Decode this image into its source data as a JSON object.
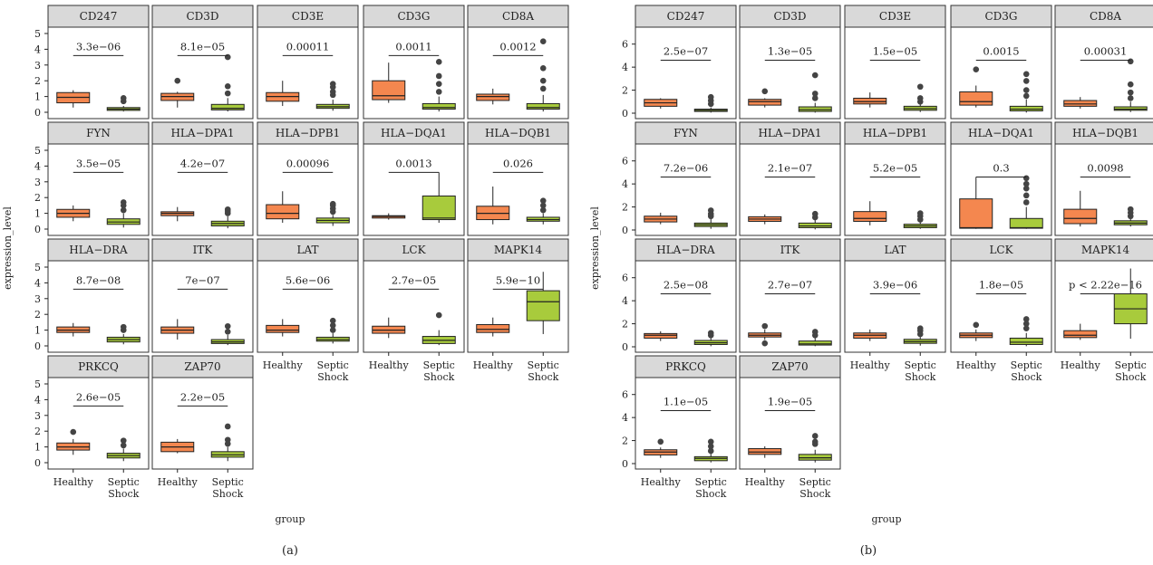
{
  "colors": {
    "healthy": "#F4874F",
    "septic": "#A8CB3C",
    "strip": "#d9d9d9"
  },
  "chart_data": [
    {
      "type": "boxplot",
      "caption": "(a)",
      "xlabel": "group",
      "ylabel": "expression_level",
      "groups": [
        "Healthy",
        "Septic Shock"
      ],
      "group_label_lines": [
        [
          "Healthy"
        ],
        [
          "Septic",
          "Shock"
        ]
      ],
      "ylim": [
        0,
        5
      ],
      "yticks": [
        0,
        1,
        2,
        3,
        4,
        5
      ],
      "panels": [
        {
          "gene": "CD247",
          "p": "3.3e−06",
          "boxes": [
            [
              0.3,
              0.6,
              0.95,
              1.25,
              1.4
            ],
            [
              0.05,
              0.12,
              0.2,
              0.3,
              0.4
            ]
          ],
          "outliers": [
            [],
            [
              0.7,
              0.9
            ]
          ],
          "bracket_y": 3.6
        },
        {
          "gene": "CD3D",
          "p": "8.1e−05",
          "boxes": [
            [
              0.3,
              0.75,
              1.0,
              1.2,
              1.3
            ],
            [
              0.05,
              0.15,
              0.25,
              0.5,
              0.9
            ]
          ],
          "outliers": [
            [
              2.0
            ],
            [
              1.2,
              1.65,
              3.5
            ]
          ],
          "bracket_y": 3.6
        },
        {
          "gene": "CD3E",
          "p": "0.00011",
          "boxes": [
            [
              0.4,
              0.7,
              1.0,
              1.25,
              2.0
            ],
            [
              0.1,
              0.25,
              0.35,
              0.5,
              0.8
            ]
          ],
          "outliers": [
            [],
            [
              1.1,
              1.3,
              1.6,
              1.8
            ]
          ],
          "bracket_y": 3.6
        },
        {
          "gene": "CD3G",
          "p": "0.0011",
          "boxes": [
            [
              0.6,
              0.8,
              1.05,
              2.0,
              3.15
            ],
            [
              0.05,
              0.2,
              0.3,
              0.55,
              1.0
            ]
          ],
          "outliers": [
            [],
            [
              1.3,
              1.8,
              2.3,
              3.2
            ]
          ],
          "bracket_y": 3.6
        },
        {
          "gene": "CD8A",
          "p": "0.0012",
          "boxes": [
            [
              0.5,
              0.75,
              1.0,
              1.15,
              1.5
            ],
            [
              0.05,
              0.2,
              0.3,
              0.55,
              1.1
            ]
          ],
          "outliers": [
            [],
            [
              1.5,
              2.0,
              2.8,
              4.5
            ]
          ],
          "bracket_y": 3.6
        },
        {
          "gene": "FYN",
          "p": "3.5e−05",
          "boxes": [
            [
              0.5,
              0.75,
              1.0,
              1.25,
              1.5
            ],
            [
              0.1,
              0.3,
              0.45,
              0.65,
              1.0
            ]
          ],
          "outliers": [
            [],
            [
              1.2,
              1.5,
              1.7
            ]
          ],
          "bracket_y": 3.6
        },
        {
          "gene": "HLA−DPA1",
          "p": "4.2e−07",
          "boxes": [
            [
              0.5,
              0.85,
              1.0,
              1.1,
              1.4
            ],
            [
              0.05,
              0.2,
              0.35,
              0.5,
              0.8
            ]
          ],
          "outliers": [
            [],
            [
              1.0,
              1.15,
              1.25
            ]
          ],
          "bracket_y": 3.6
        },
        {
          "gene": "HLA−DPB1",
          "p": "0.00096",
          "boxes": [
            [
              0.4,
              0.65,
              1.0,
              1.55,
              2.4
            ],
            [
              0.2,
              0.4,
              0.55,
              0.7,
              0.9
            ]
          ],
          "outliers": [
            [],
            [
              1.1,
              1.3,
              1.5,
              1.6
            ]
          ],
          "bracket_y": 3.6
        },
        {
          "gene": "HLA−DQA1",
          "p": "0.0013",
          "boxes": [
            [
              0.6,
              0.7,
              0.8,
              0.85,
              1.0
            ],
            [
              0.4,
              0.6,
              0.7,
              2.1,
              3.6
            ]
          ],
          "outliers": [
            [],
            []
          ],
          "bracket_y": 3.6
        },
        {
          "gene": "HLA−DQB1",
          "p": "0.026",
          "boxes": [
            [
              0.3,
              0.6,
              1.0,
              1.45,
              2.7
            ],
            [
              0.3,
              0.5,
              0.6,
              0.75,
              1.0
            ]
          ],
          "outliers": [
            [],
            [
              1.2,
              1.5,
              1.8
            ]
          ],
          "bracket_y": 3.6
        },
        {
          "gene": "HLA−DRA",
          "p": "8.7e−08",
          "boxes": [
            [
              0.6,
              0.85,
              1.0,
              1.2,
              1.45
            ],
            [
              0.1,
              0.25,
              0.4,
              0.55,
              0.75
            ]
          ],
          "outliers": [
            [],
            [
              1.0,
              1.2
            ]
          ],
          "bracket_y": 3.6
        },
        {
          "gene": "ITK",
          "p": "7e−07",
          "boxes": [
            [
              0.4,
              0.8,
              1.0,
              1.2,
              1.7
            ],
            [
              0.05,
              0.15,
              0.25,
              0.4,
              0.7
            ]
          ],
          "outliers": [
            [],
            [
              0.9,
              1.25
            ]
          ],
          "bracket_y": 3.6
        },
        {
          "gene": "LAT",
          "p": "5.6e−06",
          "boxes": [
            [
              0.6,
              0.85,
              1.0,
              1.3,
              1.7
            ],
            [
              0.15,
              0.3,
              0.4,
              0.55,
              0.8
            ]
          ],
          "outliers": [
            [],
            [
              1.0,
              1.3,
              1.6
            ]
          ],
          "bracket_y": 3.6
        },
        {
          "gene": "LCK",
          "p": "2.7e−05",
          "boxes": [
            [
              0.5,
              0.8,
              1.0,
              1.25,
              1.8
            ],
            [
              0.05,
              0.15,
              0.35,
              0.6,
              1.0
            ]
          ],
          "outliers": [
            [],
            [
              1.95
            ]
          ],
          "bracket_y": 3.6
        },
        {
          "gene": "MAPK14",
          "p": "5.9e−10",
          "boxes": [
            [
              0.6,
              0.85,
              1.05,
              1.35,
              1.8
            ],
            [
              0.75,
              1.6,
              2.8,
              3.5,
              4.7
            ]
          ],
          "outliers": [
            [],
            []
          ],
          "bracket_y": 3.6
        },
        {
          "gene": "PRKCQ",
          "p": "2.6e−05",
          "boxes": [
            [
              0.5,
              0.8,
              1.0,
              1.25,
              1.5
            ],
            [
              0.1,
              0.3,
              0.45,
              0.6,
              0.9
            ]
          ],
          "outliers": [
            [
              1.95
            ],
            [
              1.1,
              1.4
            ]
          ],
          "bracket_y": 3.6
        },
        {
          "gene": "ZAP70",
          "p": "2.2e−05",
          "boxes": [
            [
              0.6,
              0.7,
              1.0,
              1.3,
              1.5
            ],
            [
              0.1,
              0.35,
              0.5,
              0.7,
              1.0
            ]
          ],
          "outliers": [
            [],
            [
              1.2,
              1.45,
              2.3
            ]
          ],
          "bracket_y": 3.6
        }
      ]
    },
    {
      "type": "boxplot",
      "caption": "(b)",
      "xlabel": "group",
      "ylabel": "expression_level",
      "groups": [
        "Healthy",
        "Septic Shock"
      ],
      "group_label_lines": [
        [
          "Healthy"
        ],
        [
          "Septic",
          "Shock"
        ]
      ],
      "ylim": [
        0,
        7
      ],
      "yticks": [
        0,
        2,
        4,
        6
      ],
      "panels": [
        {
          "gene": "CD247",
          "p": "2.5e−07",
          "boxes": [
            [
              0.4,
              0.6,
              0.9,
              1.2,
              1.3
            ],
            [
              0.05,
              0.15,
              0.25,
              0.35,
              0.5
            ]
          ],
          "outliers": [
            [],
            [
              0.8,
              1.1,
              1.4
            ]
          ],
          "bracket_y": 4.6
        },
        {
          "gene": "CD3D",
          "p": "1.3e−05",
          "boxes": [
            [
              0.5,
              0.7,
              1.0,
              1.2,
              1.3
            ],
            [
              0.05,
              0.15,
              0.3,
              0.55,
              0.9
            ]
          ],
          "outliers": [
            [
              1.9
            ],
            [
              1.3,
              1.7,
              3.3
            ]
          ],
          "bracket_y": 4.6
        },
        {
          "gene": "CD3E",
          "p": "1.5e−05",
          "boxes": [
            [
              0.5,
              0.8,
              1.0,
              1.3,
              1.8
            ],
            [
              0.1,
              0.25,
              0.4,
              0.6,
              0.9
            ]
          ],
          "outliers": [
            [],
            [
              1.0,
              1.3,
              2.3
            ]
          ],
          "bracket_y": 4.6
        },
        {
          "gene": "CD3G",
          "p": "0.0015",
          "boxes": [
            [
              0.5,
              0.7,
              1.0,
              1.85,
              2.4
            ],
            [
              0.05,
              0.2,
              0.35,
              0.6,
              1.2
            ]
          ],
          "outliers": [
            [
              3.8
            ],
            [
              1.5,
              2.0,
              2.8,
              3.4
            ]
          ],
          "bracket_y": 4.6
        },
        {
          "gene": "CD8A",
          "p": "0.00031",
          "boxes": [
            [
              0.4,
              0.6,
              0.8,
              1.1,
              1.4
            ],
            [
              0.1,
              0.25,
              0.35,
              0.55,
              1.0
            ]
          ],
          "outliers": [
            [],
            [
              1.3,
              1.8,
              2.5,
              4.5
            ]
          ],
          "bracket_y": 4.6
        },
        {
          "gene": "FYN",
          "p": "7.2e−06",
          "boxes": [
            [
              0.5,
              0.7,
              0.95,
              1.2,
              1.5
            ],
            [
              0.1,
              0.3,
              0.45,
              0.6,
              1.0
            ]
          ],
          "outliers": [
            [],
            [
              1.2,
              1.4,
              1.7
            ]
          ],
          "bracket_y": 4.6
        },
        {
          "gene": "HLA−DPA1",
          "p": "2.1e−07",
          "boxes": [
            [
              0.5,
              0.75,
              0.95,
              1.15,
              1.35
            ],
            [
              0.05,
              0.2,
              0.35,
              0.6,
              0.9
            ]
          ],
          "outliers": [
            [],
            [
              1.1,
              1.4
            ]
          ],
          "bracket_y": 4.6
        },
        {
          "gene": "HLA−DPB1",
          "p": "5.2e−05",
          "boxes": [
            [
              0.4,
              0.75,
              1.0,
              1.6,
              2.5
            ],
            [
              0.1,
              0.2,
              0.35,
              0.5,
              0.7
            ]
          ],
          "outliers": [
            [],
            [
              0.9,
              1.2,
              1.45
            ]
          ],
          "bracket_y": 4.6
        },
        {
          "gene": "HLA−DQA1",
          "p": "0.3",
          "boxes": [
            [
              0.1,
              0.15,
              0.2,
              2.7,
              4.6
            ],
            [
              0.1,
              0.15,
              0.2,
              1.0,
              2.0
            ]
          ],
          "outliers": [
            [],
            [
              2.4,
              3.0,
              3.6,
              4.0,
              4.5
            ]
          ],
          "bracket_y": 4.6
        },
        {
          "gene": "HLA−DQB1",
          "p": "0.0098",
          "boxes": [
            [
              0.3,
              0.55,
              1.0,
              1.8,
              3.4
            ],
            [
              0.3,
              0.45,
              0.6,
              0.8,
              1.0
            ]
          ],
          "outliers": [
            [],
            [
              1.2,
              1.5,
              1.8
            ]
          ],
          "bracket_y": 4.6
        },
        {
          "gene": "HLA−DRA",
          "p": "2.5e−08",
          "boxes": [
            [
              0.5,
              0.75,
              1.0,
              1.15,
              1.35
            ],
            [
              0.05,
              0.2,
              0.35,
              0.55,
              0.8
            ]
          ],
          "outliers": [
            [],
            [
              1.0,
              1.2
            ]
          ],
          "bracket_y": 4.6
        },
        {
          "gene": "ITK",
          "p": "2.7e−07",
          "boxes": [
            [
              0.6,
              0.85,
              1.0,
              1.2,
              1.5
            ],
            [
              0.05,
              0.15,
              0.25,
              0.5,
              0.8
            ]
          ],
          "outliers": [
            [
              0.3,
              1.8
            ],
            [
              1.0,
              1.3
            ]
          ],
          "bracket_y": 4.6
        },
        {
          "gene": "LAT",
          "p": "3.9e−06",
          "boxes": [
            [
              0.5,
              0.75,
              1.0,
              1.2,
              1.5
            ],
            [
              0.1,
              0.3,
              0.45,
              0.65,
              0.9
            ]
          ],
          "outliers": [
            [],
            [
              1.1,
              1.4,
              1.6
            ]
          ],
          "bracket_y": 4.6
        },
        {
          "gene": "LCK",
          "p": "1.8e−05",
          "boxes": [
            [
              0.5,
              0.8,
              1.0,
              1.2,
              1.5
            ],
            [
              0.05,
              0.2,
              0.4,
              0.75,
              1.2
            ]
          ],
          "outliers": [
            [
              1.9
            ],
            [
              1.6,
              2.0,
              2.4
            ]
          ],
          "bracket_y": 4.6
        },
        {
          "gene": "MAPK14",
          "p": "p < 2.22e−16",
          "boxes": [
            [
              0.6,
              0.8,
              1.0,
              1.4,
              2.0
            ],
            [
              0.7,
              2.0,
              3.3,
              4.6,
              6.8
            ]
          ],
          "outliers": [
            [],
            []
          ],
          "bracket_y": 4.6
        },
        {
          "gene": "PRKCQ",
          "p": "1.1e−05",
          "boxes": [
            [
              0.5,
              0.75,
              1.0,
              1.2,
              1.4
            ],
            [
              0.1,
              0.25,
              0.45,
              0.6,
              0.9
            ]
          ],
          "outliers": [
            [
              1.9
            ],
            [
              1.1,
              1.5,
              1.9
            ]
          ],
          "bracket_y": 4.6
        },
        {
          "gene": "ZAP70",
          "p": "1.9e−05",
          "boxes": [
            [
              0.5,
              0.8,
              1.0,
              1.3,
              1.5
            ],
            [
              0.1,
              0.3,
              0.5,
              0.8,
              1.2
            ]
          ],
          "outliers": [
            [],
            [
              1.7,
              1.9,
              2.4
            ]
          ],
          "bracket_y": 4.6
        }
      ]
    }
  ]
}
